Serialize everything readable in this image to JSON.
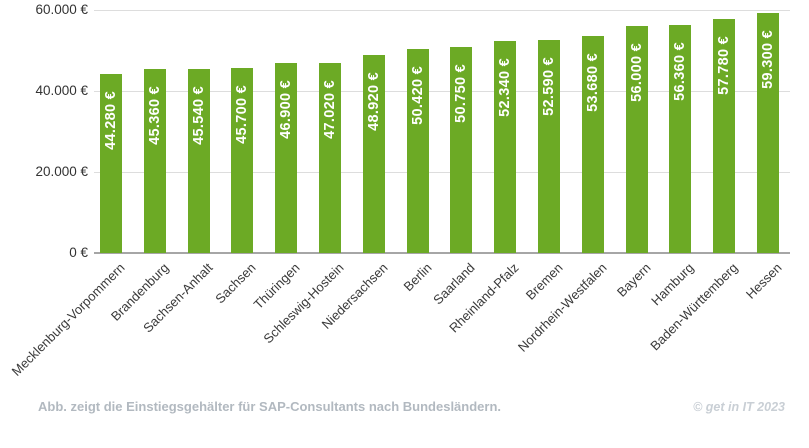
{
  "chart_data": {
    "type": "bar",
    "title": "",
    "xlabel": "",
    "ylabel": "",
    "categories": [
      "Mecklenburg-Vorpommern",
      "Brandenburg",
      "Sachsen-Anhalt",
      "Sachsen",
      "Thüringen",
      "Schleswig-Hostein",
      "Niedersachsen",
      "Berlin",
      "Saarland",
      "Rheinland-Pfalz",
      "Bremen",
      "Nordrhein-Westfalen",
      "Bayern",
      "Hamburg",
      "Baden-Württemberg",
      "Hessen"
    ],
    "values": [
      44280,
      45360,
      45540,
      45700,
      46900,
      47020,
      48920,
      50420,
      50750,
      52340,
      52590,
      53680,
      56000,
      56360,
      57780,
      59300
    ],
    "value_labels": [
      "44.280 €",
      "45.360 €",
      "45.540 €",
      "45.700 €",
      "46.900 €",
      "47.020 €",
      "48.920 €",
      "50.420 €",
      "50.750 €",
      "52.340 €",
      "52.590 €",
      "53.680 €",
      "56.000 €",
      "56.360 €",
      "57.780 €",
      "59.300 €"
    ],
    "ylim": [
      0,
      60000
    ],
    "yticks": [
      0,
      20000,
      40000,
      60000
    ],
    "ytick_labels": [
      "0 €",
      "20.000 €",
      "40.000 €",
      "60.000 €"
    ],
    "grid": true,
    "legend": "none",
    "x_tick_rotation_deg": -45
  },
  "colors": {
    "bar": "#6CAA25",
    "gridline": "#dddddd",
    "axis_line": "#a6a6a6",
    "axis_text": "#333333",
    "bar_label_text": "#ffffff",
    "caption_text": "#b2b9c0",
    "copyright_text": "#c9cfd5",
    "background": "#ffffff"
  },
  "footer": {
    "caption": "Abb. zeigt die Einstiegsgehälter für SAP-Consultants nach Bundesländern.",
    "copyright": "© get in IT 2023"
  }
}
